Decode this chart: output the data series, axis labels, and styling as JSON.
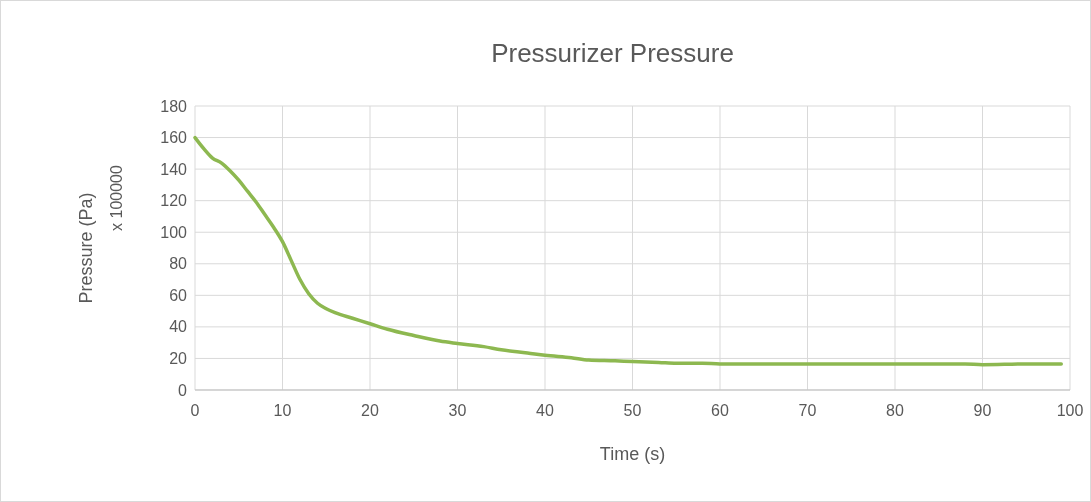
{
  "chart_data": {
    "type": "line",
    "title": "Pressurizer Pressure",
    "xlabel": "Time (s)",
    "ylabel": "Pressure (Pa)",
    "annotations": [
      "x 100000"
    ],
    "x": [
      0,
      1,
      2,
      3,
      4,
      5,
      6,
      7,
      8,
      9,
      10,
      11,
      12,
      13,
      14,
      15,
      16,
      18,
      20,
      22,
      25,
      28,
      30,
      33,
      35,
      38,
      40,
      43,
      45,
      48,
      50,
      53,
      55,
      58,
      60,
      62,
      65,
      70,
      80,
      85,
      88,
      90,
      95,
      99
    ],
    "series": [
      {
        "color": "#8db850",
        "values": [
          160,
          153,
          147,
          144,
          139,
          133,
          126,
          119,
          111,
          103,
          94,
          82,
          70,
          61,
          55,
          51.5,
          49,
          45.5,
          42,
          38.5,
          34.5,
          31,
          29.5,
          27.5,
          25.5,
          23.5,
          22,
          20.5,
          19,
          18.5,
          18,
          17.5,
          17,
          17,
          16.5,
          16.5,
          16.5,
          16.5,
          16.5,
          16.5,
          16.5,
          16,
          16.5,
          16.5
        ]
      }
    ],
    "xlim": [
      0,
      100
    ],
    "xticks": [
      0,
      10,
      20,
      30,
      40,
      50,
      60,
      70,
      80,
      90,
      100
    ],
    "ylim": [
      0,
      180
    ],
    "yticks": [
      0,
      20,
      40,
      60,
      80,
      100,
      120,
      140,
      160,
      180
    ],
    "grid": true,
    "marker": "none",
    "line_style": "solid"
  }
}
